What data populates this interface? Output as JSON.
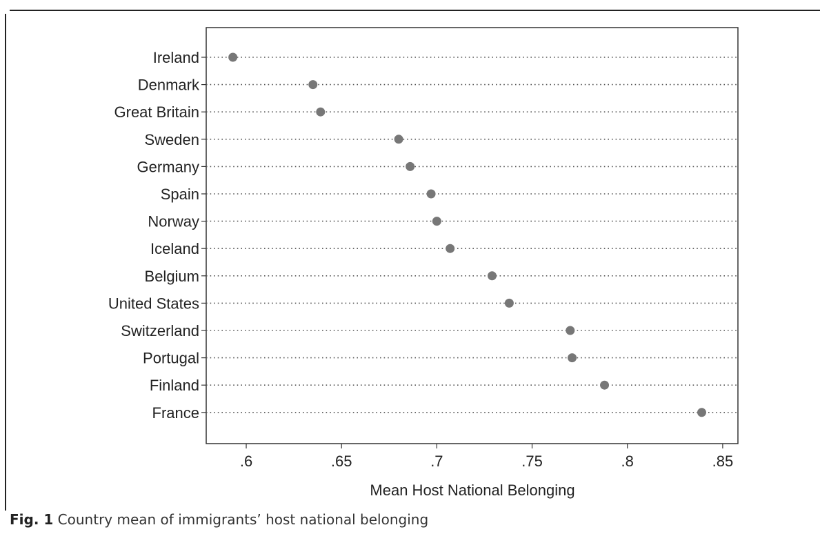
{
  "caption": {
    "label": "Fig. 1",
    "text": "Country mean of immigrants’ host national belonging"
  },
  "chart_data": {
    "type": "scatter",
    "title": "",
    "xlabel": "Mean Host National Belonging",
    "ylabel": "",
    "xlim": [
      0.579,
      0.858
    ],
    "xticks": [
      0.6,
      0.65,
      0.7,
      0.75,
      0.8,
      0.85
    ],
    "xtick_labels": [
      ".6",
      ".65",
      ".7",
      ".75",
      ".8",
      ".85"
    ],
    "categories": [
      "Ireland",
      "Denmark",
      "Great Britain",
      "Sweden",
      "Germany",
      "Spain",
      "Norway",
      "Iceland",
      "Belgium",
      "United States",
      "Switzerland",
      "Portugal",
      "Finland",
      "France"
    ],
    "values": [
      0.593,
      0.635,
      0.639,
      0.68,
      0.686,
      0.697,
      0.7,
      0.707,
      0.729,
      0.738,
      0.77,
      0.771,
      0.788,
      0.839
    ],
    "grid": "dotted horizontal guide lines",
    "colors": {
      "marker": "#777777",
      "guide": "#555555",
      "axis": "#333333",
      "text": "#222222"
    }
  }
}
